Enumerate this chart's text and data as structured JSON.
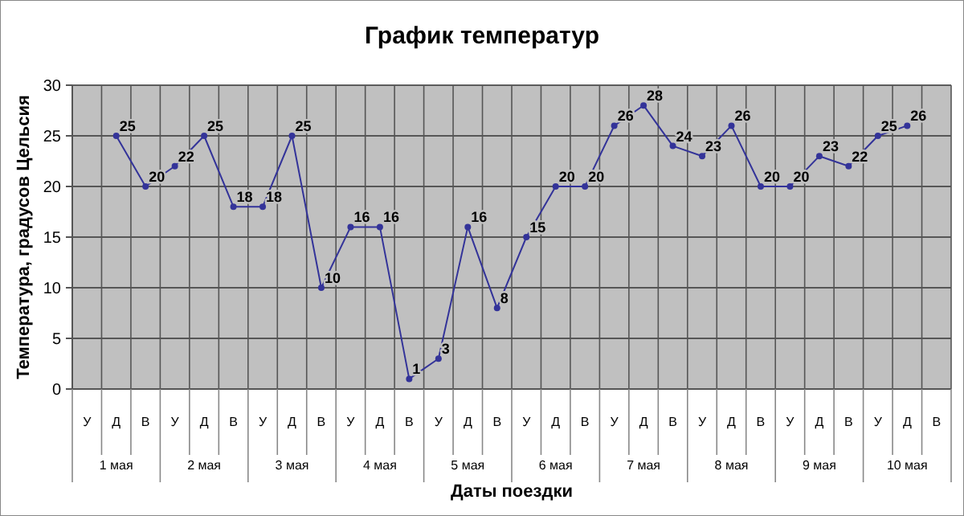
{
  "chart_data": {
    "type": "line",
    "title": "График температур",
    "xlabel": "Даты поездки",
    "ylabel": "Температура, градусов Цельсия",
    "categories": [
      "У",
      "Д",
      "В",
      "У",
      "Д",
      "В",
      "У",
      "Д",
      "В",
      "У",
      "Д",
      "В",
      "У",
      "Д",
      "В",
      "У",
      "Д",
      "В",
      "У",
      "Д",
      "В",
      "У",
      "Д",
      "В",
      "У",
      "Д",
      "В",
      "У",
      "Д",
      "В"
    ],
    "annotations": [
      "1 мая",
      "2 мая",
      "3 мая",
      "4 мая",
      "5 мая",
      "6 мая",
      "7 мая",
      "8 мая",
      "9 мая",
      "10 мая"
    ],
    "series": [
      {
        "color": "#333399",
        "values": [
          null,
          25,
          20,
          22,
          25,
          18,
          18,
          25,
          10,
          16,
          16,
          1,
          3,
          16,
          8,
          15,
          20,
          20,
          26,
          28,
          24,
          23,
          26,
          20,
          20,
          23,
          22,
          25,
          26,
          null
        ]
      }
    ],
    "ylim": [
      0,
      30
    ],
    "yticks": [
      0,
      5,
      10,
      15,
      20,
      25,
      30
    ],
    "grid": true,
    "marker": "circle",
    "data_labels": true
  }
}
